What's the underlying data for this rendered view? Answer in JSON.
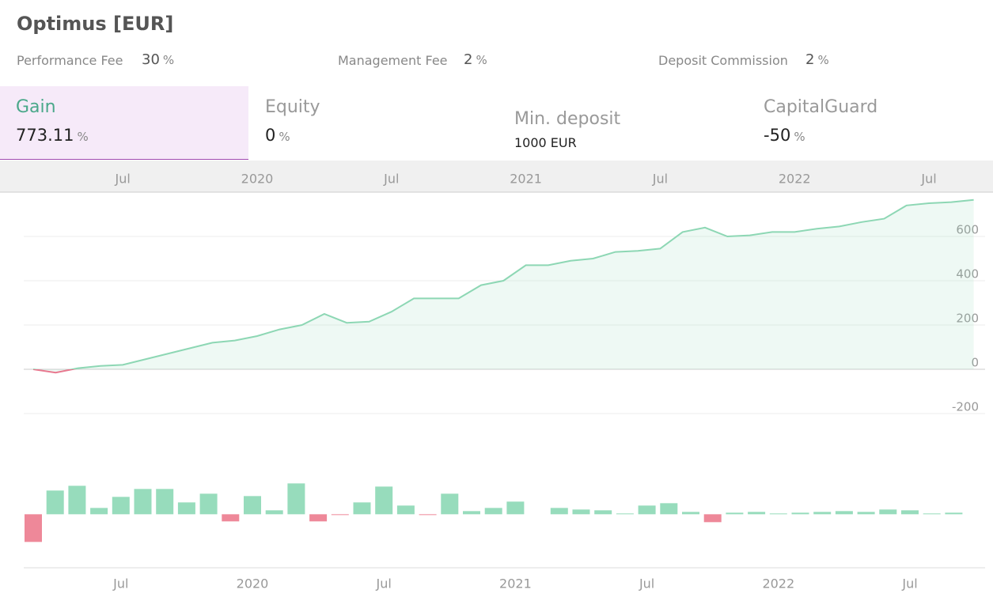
{
  "title": "Optimus [EUR]",
  "fees": [
    {
      "label": "Performance Fee",
      "value": "30",
      "unit": "%"
    },
    {
      "label": "Management Fee",
      "value": "2",
      "unit": "%"
    },
    {
      "label": "Deposit Commission",
      "value": "2",
      "unit": "%"
    }
  ],
  "tabs": [
    {
      "label": "Gain",
      "value": "773.11",
      "unit": "%"
    },
    {
      "label": "Equity",
      "value": "0",
      "unit": "%"
    },
    {
      "label": "Min. deposit",
      "value": "1000 EUR"
    },
    {
      "label": "CapitalGuard",
      "value": "-50",
      "unit": "%"
    }
  ],
  "chart_data": [
    {
      "type": "line",
      "x": [
        "2019-03",
        "2019-04",
        "2019-05",
        "2019-06",
        "2019-07",
        "2019-08",
        "2019-09",
        "2019-10",
        "2019-11",
        "2019-12",
        "2020-01",
        "2020-02",
        "2020-03",
        "2020-04",
        "2020-05",
        "2020-06",
        "2020-07",
        "2020-08",
        "2020-09",
        "2020-10",
        "2020-11",
        "2020-12",
        "2021-01",
        "2021-02",
        "2021-03",
        "2021-04",
        "2021-05",
        "2021-06",
        "2021-07",
        "2021-08",
        "2021-09",
        "2021-10",
        "2021-11",
        "2021-12",
        "2022-01",
        "2022-02",
        "2022-03",
        "2022-04",
        "2022-05",
        "2022-06",
        "2022-07",
        "2022-08",
        "2022-09"
      ],
      "series": [
        {
          "color": "#8dd7b4",
          "negative_color": "#e8788f",
          "values": [
            0,
            -15,
            5,
            15,
            20,
            45,
            70,
            95,
            120,
            130,
            150,
            180,
            200,
            250,
            210,
            215,
            260,
            320,
            320,
            320,
            380,
            400,
            470,
            470,
            490,
            500,
            530,
            535,
            545,
            620,
            640,
            600,
            605,
            620,
            620,
            635,
            645,
            665,
            680,
            740,
            750,
            755,
            765
          ]
        }
      ],
      "ylim": [
        -200,
        800
      ],
      "yticks": [
        -200,
        0,
        200,
        400,
        600
      ],
      "grid": true,
      "xticks": [
        {
          "value": "2019-07",
          "label": "Jul"
        },
        {
          "value": "2020-01",
          "label": "2020"
        },
        {
          "value": "2020-07",
          "label": "Jul"
        },
        {
          "value": "2021-01",
          "label": "2021"
        },
        {
          "value": "2021-07",
          "label": "Jul"
        },
        {
          "value": "2022-01",
          "label": "2022"
        },
        {
          "value": "2022-07",
          "label": "Jul"
        }
      ]
    },
    {
      "type": "bar",
      "x": [
        "2019-03",
        "2019-04",
        "2019-05",
        "2019-06",
        "2019-07",
        "2019-08",
        "2019-09",
        "2019-10",
        "2019-11",
        "2019-12",
        "2020-01",
        "2020-02",
        "2020-03",
        "2020-04",
        "2020-05",
        "2020-06",
        "2020-07",
        "2020-08",
        "2020-09",
        "2020-10",
        "2020-11",
        "2020-12",
        "2021-01",
        "2021-02",
        "2021-03",
        "2021-04",
        "2021-05",
        "2021-06",
        "2021-07",
        "2021-08",
        "2021-09",
        "2021-10",
        "2021-11",
        "2021-12",
        "2022-01",
        "2022-02",
        "2022-03",
        "2022-04",
        "2022-05",
        "2022-06",
        "2022-07",
        "2022-08",
        "2022-09"
      ],
      "values": [
        -21,
        18,
        21.6,
        4.8,
        13.2,
        19.2,
        19.2,
        9,
        15.6,
        -5.4,
        13.8,
        3,
        23.4,
        -5.4,
        -0.6,
        9,
        21,
        6.6,
        -0.6,
        15.6,
        2.4,
        4.8,
        9.6,
        null,
        4.8,
        3.6,
        3,
        0.6,
        6.6,
        8.4,
        1.8,
        -6,
        1.2,
        1.8,
        0.6,
        1.2,
        1.8,
        2.4,
        1.8,
        3.6,
        3,
        0.6,
        1.2
      ],
      "color": "#97dcbc",
      "negative_color": "#ee8899",
      "ylim": [
        -40,
        56
      ],
      "xticks": [
        {
          "value": "2019-07",
          "label": "Jul"
        },
        {
          "value": "2020-01",
          "label": "2020"
        },
        {
          "value": "2020-07",
          "label": "Jul"
        },
        {
          "value": "2021-01",
          "label": "2021"
        },
        {
          "value": "2021-07",
          "label": "Jul"
        },
        {
          "value": "2022-01",
          "label": "2022"
        },
        {
          "value": "2022-07",
          "label": "Jul"
        }
      ]
    }
  ]
}
